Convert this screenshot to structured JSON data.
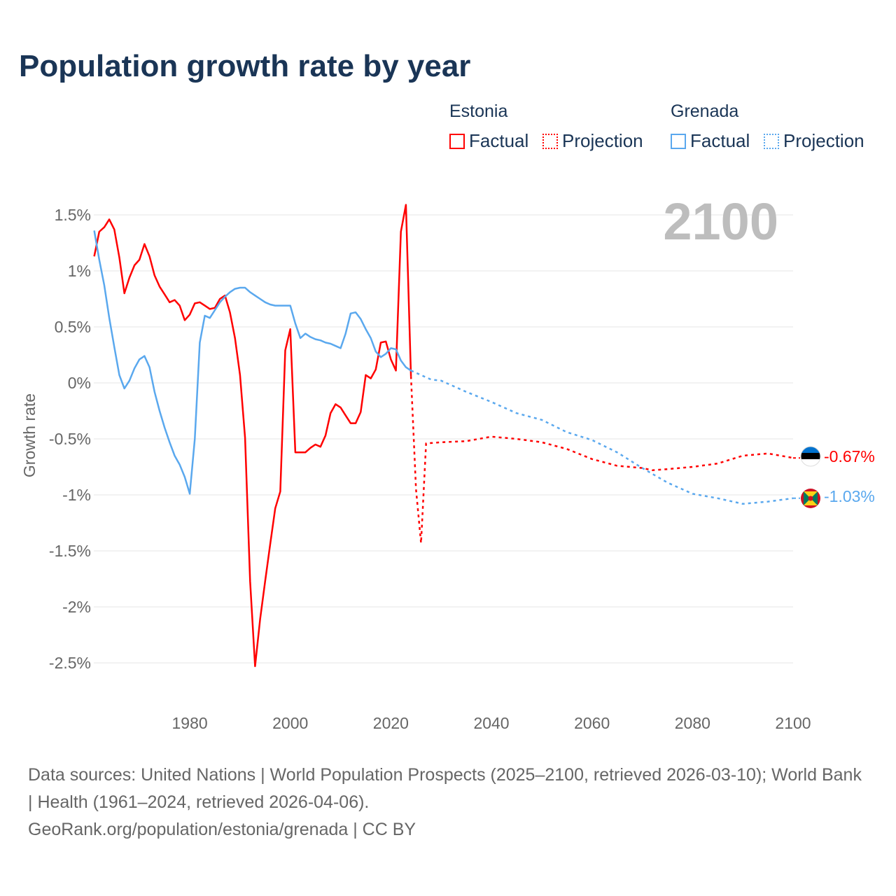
{
  "title": "Population growth rate by year",
  "legend": {
    "groups": [
      {
        "name": "Estonia",
        "factual": "Factual",
        "projection": "Projection",
        "color": "#ff0000"
      },
      {
        "name": "Grenada",
        "factual": "Factual",
        "projection": "Projection",
        "color": "#5aa8ee"
      }
    ]
  },
  "year_label": "2100",
  "end_labels": {
    "estonia": "-0.67%",
    "grenada": "-1.03%"
  },
  "flags": {
    "estonia": "estonia-flag-icon",
    "grenada": "grenada-flag-icon"
  },
  "source_lines": [
    "Data sources: United Nations | World Population Prospects (2025–2100, retrieved 2026-03-10); World Bank | Health (1961–2024, retrieved 2026-04-06).",
    "GeoRank.org/population/estonia/grenada | CC BY"
  ],
  "chart_data": {
    "type": "line",
    "title": "Population growth rate by year",
    "xlabel": "",
    "ylabel": "Growth rate",
    "xlim": [
      1961,
      2100
    ],
    "ylim": [
      -2.75,
      1.75
    ],
    "x_ticks": [
      1980,
      2000,
      2020,
      2040,
      2060,
      2080,
      2100
    ],
    "y_ticks": [
      1.5,
      1,
      0.5,
      0,
      -0.5,
      -1,
      -1.5,
      -2,
      -2.5
    ],
    "y_tick_labels": [
      "1.5%",
      "1%",
      "0.5%",
      "0%",
      "-0.5%",
      "-1%",
      "-1.5%",
      "-2%",
      "-2.5%"
    ],
    "series": [
      {
        "name": "Estonia Factual",
        "color": "#ff0000",
        "style": "solid",
        "x": [
          1961,
          1962,
          1963,
          1964,
          1965,
          1966,
          1967,
          1968,
          1969,
          1970,
          1971,
          1972,
          1973,
          1974,
          1975,
          1976,
          1977,
          1978,
          1979,
          1980,
          1981,
          1982,
          1983,
          1984,
          1985,
          1986,
          1987,
          1988,
          1989,
          1990,
          1991,
          1992,
          1993,
          1994,
          1995,
          1996,
          1997,
          1998,
          1999,
          2000,
          2001,
          2002,
          2003,
          2004,
          2005,
          2006,
          2007,
          2008,
          2009,
          2010,
          2011,
          2012,
          2013,
          2014,
          2015,
          2016,
          2017,
          2018,
          2019,
          2020,
          2021,
          2022,
          2023,
          2024
        ],
        "y": [
          1.13,
          1.35,
          1.39,
          1.46,
          1.37,
          1.12,
          0.8,
          0.94,
          1.05,
          1.1,
          1.24,
          1.13,
          0.96,
          0.86,
          0.79,
          0.72,
          0.74,
          0.69,
          0.56,
          0.61,
          0.71,
          0.72,
          0.69,
          0.66,
          0.67,
          0.75,
          0.78,
          0.63,
          0.4,
          0.07,
          -0.49,
          -1.77,
          -2.53,
          -2.11,
          -1.77,
          -1.44,
          -1.12,
          -0.97,
          0.29,
          0.48,
          -0.62,
          -0.62,
          -0.62,
          -0.58,
          -0.55,
          -0.57,
          -0.47,
          -0.27,
          -0.19,
          -0.22,
          -0.29,
          -0.36,
          -0.36,
          -0.26,
          0.07,
          0.04,
          0.12,
          0.36,
          0.37,
          0.21,
          0.11,
          1.35,
          1.59,
          0.06
        ]
      },
      {
        "name": "Estonia Projection",
        "color": "#ff0000",
        "style": "dotted",
        "x": [
          2024,
          2025,
          2026,
          2027,
          2030,
          2035,
          2040,
          2045,
          2050,
          2055,
          2060,
          2065,
          2070,
          2072,
          2075,
          2080,
          2085,
          2090,
          2095,
          2100
        ],
        "y": [
          0.06,
          -0.95,
          -1.43,
          -0.54,
          -0.53,
          -0.52,
          -0.48,
          -0.5,
          -0.53,
          -0.59,
          -0.68,
          -0.74,
          -0.76,
          -0.78,
          -0.77,
          -0.75,
          -0.72,
          -0.65,
          -0.63,
          -0.67
        ]
      },
      {
        "name": "Grenada Factual",
        "color": "#5aa8ee",
        "style": "solid",
        "x": [
          1961,
          1962,
          1963,
          1964,
          1965,
          1966,
          1967,
          1968,
          1969,
          1970,
          1971,
          1972,
          1973,
          1974,
          1975,
          1976,
          1977,
          1978,
          1979,
          1980,
          1981,
          1982,
          1983,
          1984,
          1985,
          1986,
          1987,
          1988,
          1989,
          1990,
          1991,
          1992,
          1993,
          1994,
          1995,
          1996,
          1997,
          1998,
          1999,
          2000,
          2001,
          2002,
          2003,
          2004,
          2005,
          2006,
          2007,
          2008,
          2009,
          2010,
          2011,
          2012,
          2013,
          2014,
          2015,
          2016,
          2017,
          2018,
          2019,
          2020,
          2021,
          2022,
          2023,
          2024
        ],
        "y": [
          1.36,
          1.1,
          0.87,
          0.58,
          0.32,
          0.07,
          -0.05,
          0.02,
          0.13,
          0.21,
          0.24,
          0.14,
          -0.08,
          -0.25,
          -0.4,
          -0.53,
          -0.65,
          -0.73,
          -0.84,
          -0.99,
          -0.5,
          0.36,
          0.6,
          0.58,
          0.65,
          0.72,
          0.77,
          0.81,
          0.84,
          0.85,
          0.85,
          0.81,
          0.78,
          0.75,
          0.72,
          0.7,
          0.69,
          0.69,
          0.69,
          0.69,
          0.53,
          0.4,
          0.44,
          0.41,
          0.39,
          0.38,
          0.36,
          0.35,
          0.33,
          0.31,
          0.44,
          0.62,
          0.63,
          0.57,
          0.48,
          0.4,
          0.28,
          0.23,
          0.26,
          0.31,
          0.3,
          0.2,
          0.14,
          0.11
        ]
      },
      {
        "name": "Grenada Projection",
        "color": "#5aa8ee",
        "style": "dotted",
        "x": [
          2024,
          2025,
          2028,
          2030,
          2035,
          2040,
          2045,
          2050,
          2055,
          2060,
          2065,
          2070,
          2075,
          2080,
          2085,
          2090,
          2095,
          2100
        ],
        "y": [
          0.11,
          0.09,
          0.03,
          0.02,
          -0.08,
          -0.17,
          -0.27,
          -0.33,
          -0.44,
          -0.51,
          -0.62,
          -0.76,
          -0.89,
          -0.99,
          -1.03,
          -1.08,
          -1.06,
          -1.03
        ]
      }
    ]
  }
}
